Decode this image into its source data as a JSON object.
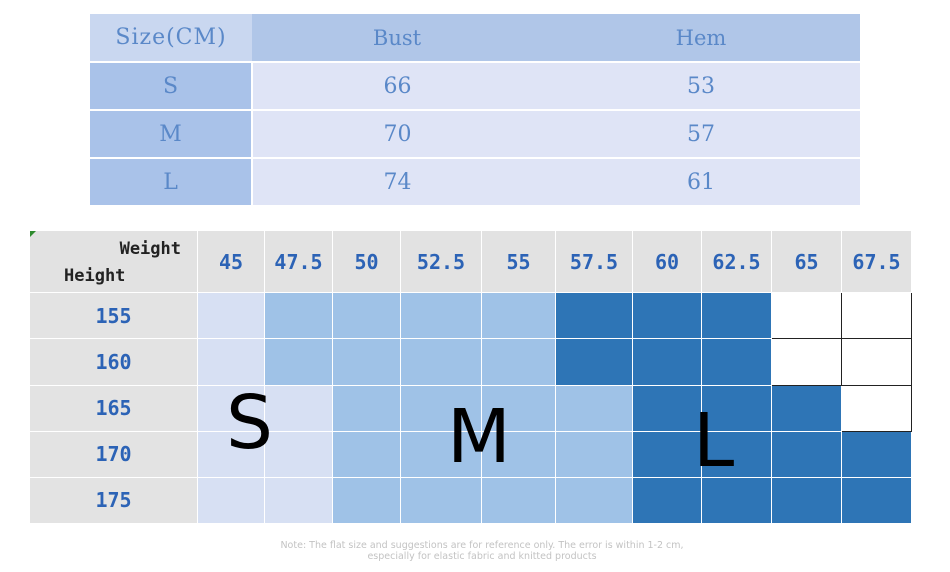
{
  "size_table": {
    "headers": [
      "Size(CM)",
      "Bust",
      "Hem"
    ],
    "rows": [
      {
        "size": "S",
        "bust": "66",
        "hem": "53"
      },
      {
        "size": "M",
        "bust": "70",
        "hem": "57"
      },
      {
        "size": "L",
        "bust": "74",
        "hem": "61"
      }
    ]
  },
  "chart_grid": {
    "weight_label": "Weight",
    "height_label": "Height",
    "weights": [
      "45",
      "47.5",
      "50",
      "52.5",
      "55",
      "57.5",
      "60",
      "62.5",
      "65",
      "67.5"
    ],
    "heights": [
      "155",
      "160",
      "165",
      "170",
      "175"
    ],
    "cells": [
      [
        "S",
        "M",
        "M",
        "M",
        "M",
        "L",
        "L",
        "L",
        "X",
        "X"
      ],
      [
        "S",
        "M",
        "M",
        "M",
        "M",
        "L",
        "L",
        "L",
        "X",
        "X"
      ],
      [
        "S",
        "S",
        "M",
        "M",
        "M",
        "M",
        "L",
        "L",
        "L",
        "X"
      ],
      [
        "S",
        "S",
        "M",
        "M",
        "M",
        "M",
        "L",
        "L",
        "L",
        "L"
      ],
      [
        "S",
        "S",
        "M",
        "M",
        "M",
        "M",
        "L",
        "L",
        "L",
        "L"
      ]
    ],
    "size_labels": {
      "s": "S",
      "m": "M",
      "l": "L"
    },
    "colors": {
      "S": "#d7e0f3",
      "M": "#9fc2e7",
      "L": "#2e75b6",
      "X": "#ffffff"
    }
  },
  "note": {
    "line1": "Note: The flat size and suggestions are for reference only. The error is within 1-2 cm,",
    "line2": "especially for elastic fabric and knitted products"
  }
}
